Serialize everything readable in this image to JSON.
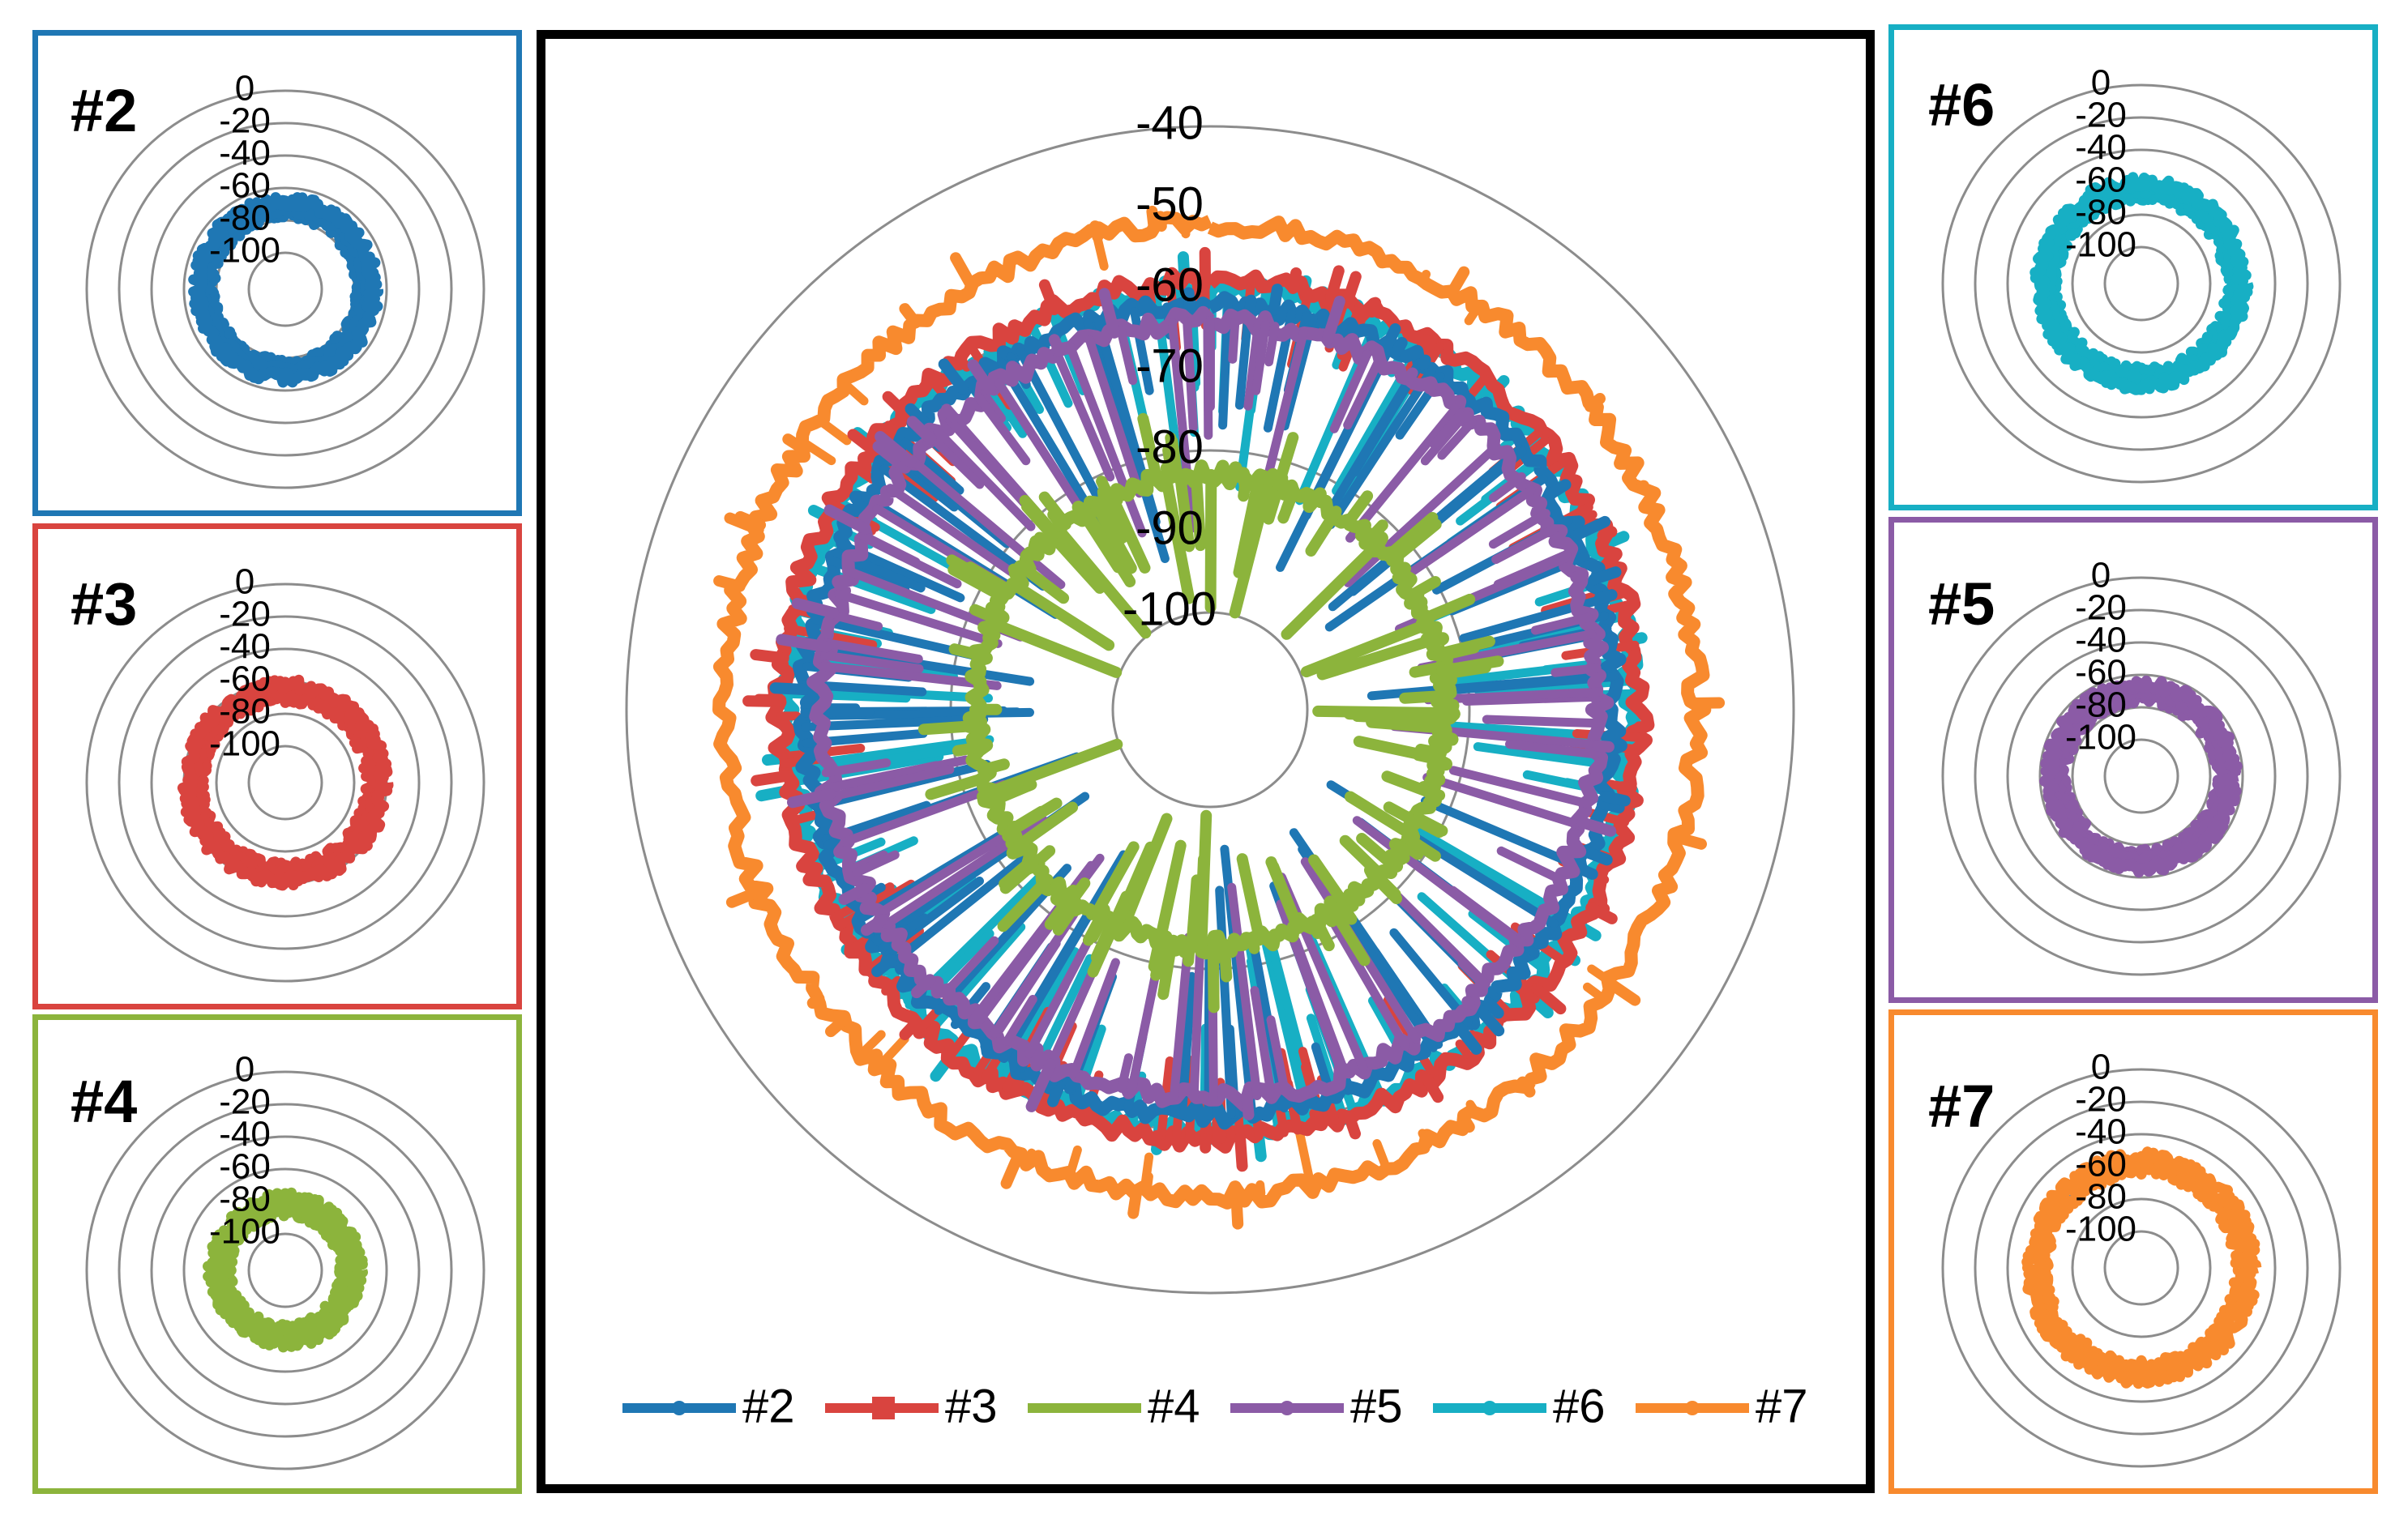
{
  "colors": {
    "#2": "#1F77B4",
    "#3": "#D9443F",
    "#4": "#8CB43C",
    "#5": "#8B5BA6",
    "#6": "#17AFC4",
    "#7": "#F88A2E",
    "grid": "#8c8c8c",
    "frame": "#000000"
  },
  "chart_data": [
    {
      "id": "main",
      "type": "radar",
      "title": "",
      "axis_ticks": [
        "-40",
        "-50",
        "-60",
        "-70",
        "-80",
        "-90",
        "-100"
      ],
      "axis_range": [
        -100,
        -40
      ],
      "series": [
        {
          "name": "#2",
          "mean_level": -62,
          "spread": [
            -95,
            -58
          ]
        },
        {
          "name": "#3",
          "mean_level": -59,
          "spread": [
            -70,
            -55
          ]
        },
        {
          "name": "#4",
          "mean_level": -83,
          "spread": [
            -100,
            -75
          ]
        },
        {
          "name": "#5",
          "mean_level": -64,
          "spread": [
            -90,
            -58
          ]
        },
        {
          "name": "#6",
          "mean_level": -60,
          "spread": [
            -85,
            -55
          ]
        },
        {
          "name": "#7",
          "mean_level": -52,
          "spread": [
            -60,
            -48
          ]
        }
      ],
      "legend": [
        "#2",
        "#3",
        "#4",
        "#5",
        "#6",
        "#7"
      ],
      "legend_position": "bottom"
    },
    {
      "id": "p2",
      "type": "radar",
      "label": "#2",
      "series": "#2",
      "axis_range": [
        -100,
        0
      ],
      "mean_level": -72,
      "axis_ticks": [
        "0",
        "-20",
        "-40",
        "-60",
        "-80",
        "-100"
      ]
    },
    {
      "id": "p3",
      "type": "radar",
      "label": "#3",
      "series": "#3",
      "axis_range": [
        -100,
        0
      ],
      "mean_level": -66,
      "axis_ticks": [
        "0",
        "-20",
        "-40",
        "-60",
        "-80",
        "-100"
      ]
    },
    {
      "id": "p4",
      "type": "radar",
      "label": "#4",
      "series": "#4",
      "axis_range": [
        -100,
        0
      ],
      "mean_level": -82,
      "axis_ticks": [
        "0",
        "-20",
        "-40",
        "-60",
        "-80",
        "-100"
      ]
    },
    {
      "id": "p6",
      "type": "radar",
      "label": "#6",
      "series": "#6",
      "axis_range": [
        -100,
        0
      ],
      "mean_level": -64,
      "axis_ticks": [
        "0",
        "-20",
        "-40",
        "-60",
        "-80",
        "-100"
      ]
    },
    {
      "id": "p5",
      "type": "radar",
      "label": "#5",
      "series": "#5",
      "axis_range": [
        -100,
        0
      ],
      "mean_level": -70,
      "axis_ticks": [
        "0",
        "-20",
        "-40",
        "-60",
        "-80",
        "-100"
      ]
    },
    {
      "id": "p7",
      "type": "radar",
      "label": "#7",
      "series": "#7",
      "axis_range": [
        -100,
        0
      ],
      "mean_level": -58,
      "axis_ticks": [
        "0",
        "-20",
        "-40",
        "-60",
        "-80",
        "-100"
      ]
    }
  ]
}
